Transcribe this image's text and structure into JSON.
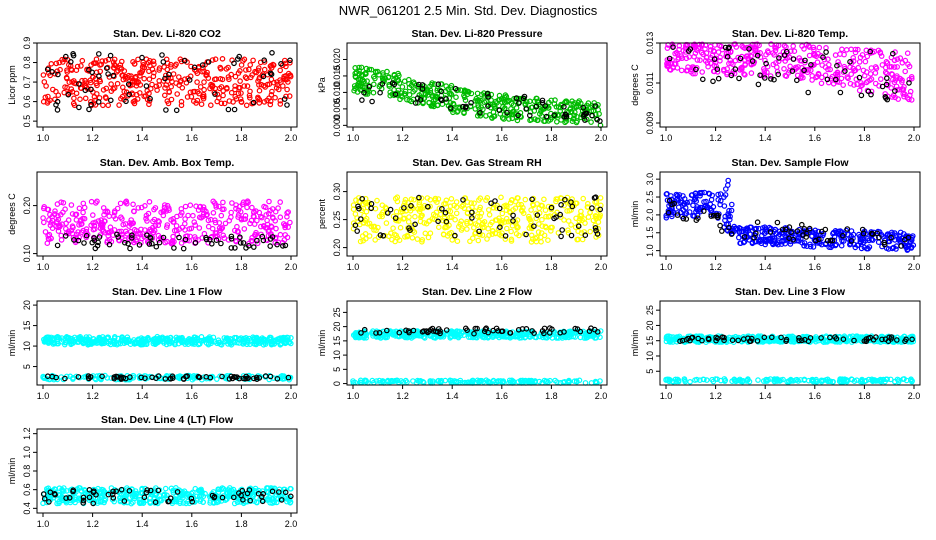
{
  "title": "NWR_061201  2.5 Min. Std. Dev. Diagnostics",
  "chart_data": [
    {
      "type": "scatter",
      "title": "Stan. Dev. Li-820 CO2",
      "ylabel": "Licor ppm",
      "xlim": [
        1.0,
        2.0
      ],
      "ylim": [
        0.47,
        0.9
      ],
      "xticks": [
        "1.0",
        "1.2",
        "1.4",
        "1.6",
        "1.8",
        "2.0"
      ],
      "yticks": [
        0.5,
        0.6,
        0.7,
        0.8,
        0.9
      ],
      "ytick_labels": [
        "0.5",
        "0.6",
        "0.7",
        "0.8",
        "0.9"
      ],
      "color": "#ff0000",
      "series": [
        {
          "name": "main",
          "color": "#ff0000",
          "band": [
            {
              "x": 1.0,
              "lo": 0.58,
              "hi": 0.82
            },
            {
              "x": 1.5,
              "lo": 0.58,
              "hi": 0.82
            },
            {
              "x": 2.0,
              "lo": 0.58,
              "hi": 0.82
            }
          ]
        },
        {
          "name": "black",
          "color": "#000000",
          "band": [
            {
              "x": 1.0,
              "lo": 0.55,
              "hi": 0.85
            },
            {
              "x": 2.0,
              "lo": 0.55,
              "hi": 0.85
            }
          ]
        }
      ]
    },
    {
      "type": "scatter",
      "title": "Stan. Dev. Li-820 Pressure",
      "ylabel": "kPa",
      "xlim": [
        1.0,
        2.0
      ],
      "ylim": [
        -0.0005,
        0.025
      ],
      "xticks": [
        "1.0",
        "1.2",
        "1.4",
        "1.6",
        "1.8",
        "2.0"
      ],
      "yticks": [
        0.0,
        0.005,
        0.01,
        0.015,
        0.02
      ],
      "ytick_labels": [
        "0.000",
        "0.005",
        "0.010",
        "0.015",
        "0.020"
      ],
      "color": "#00bb00",
      "series": [
        {
          "name": "main",
          "color": "#00bb00",
          "band": [
            {
              "x": 1.0,
              "lo": 0.01,
              "hi": 0.018
            },
            {
              "x": 1.25,
              "lo": 0.007,
              "hi": 0.015
            },
            {
              "x": 1.5,
              "lo": 0.002,
              "hi": 0.01
            },
            {
              "x": 1.8,
              "lo": 0.001,
              "hi": 0.008
            },
            {
              "x": 2.0,
              "lo": 0.0,
              "hi": 0.007
            }
          ]
        },
        {
          "name": "black",
          "color": "#000000",
          "band": [
            {
              "x": 1.0,
              "lo": 0.008,
              "hi": 0.018
            },
            {
              "x": 1.5,
              "lo": 0.003,
              "hi": 0.01
            },
            {
              "x": 2.0,
              "lo": 0.001,
              "hi": 0.007
            }
          ]
        }
      ]
    },
    {
      "type": "scatter",
      "title": "Stan. Dev. Li-820 Temp.",
      "ylabel": "degrees C",
      "xlim": [
        1.0,
        2.0
      ],
      "ylim": [
        0.0088,
        0.013
      ],
      "xticks": [
        "1.0",
        "1.2",
        "1.4",
        "1.6",
        "1.8",
        "2.0"
      ],
      "yticks": [
        0.009,
        0.011,
        0.013
      ],
      "ytick_labels": [
        "0.009",
        "0.011",
        "0.013"
      ],
      "color": "#ff00ff",
      "series": [
        {
          "name": "main",
          "color": "#ff00ff",
          "band": [
            {
              "x": 1.0,
              "lo": 0.0115,
              "hi": 0.013
            },
            {
              "x": 1.5,
              "lo": 0.0113,
              "hi": 0.013
            },
            {
              "x": 2.0,
              "lo": 0.01,
              "hi": 0.0125
            }
          ]
        },
        {
          "name": "black",
          "color": "#000000",
          "band": [
            {
              "x": 1.0,
              "lo": 0.0112,
              "hi": 0.013
            },
            {
              "x": 2.0,
              "lo": 0.01,
              "hi": 0.0125
            }
          ]
        }
      ]
    },
    {
      "type": "scatter",
      "title": "Stan. Dev. Amb. Box Temp.",
      "ylabel": "degrees C",
      "xlim": [
        1.0,
        2.0
      ],
      "ylim": [
        0.095,
        0.27
      ],
      "xticks": [
        "1.0",
        "1.2",
        "1.4",
        "1.6",
        "1.8",
        "2.0"
      ],
      "yticks": [
        0.1,
        0.2
      ],
      "ytick_labels": [
        "0.10",
        "0.20"
      ],
      "color": "#ff00ff",
      "series": [
        {
          "name": "main",
          "color": "#ff00ff",
          "band": [
            {
              "x": 1.0,
              "lo": 0.12,
              "hi": 0.21
            },
            {
              "x": 2.0,
              "lo": 0.12,
              "hi": 0.21
            }
          ]
        },
        {
          "name": "black",
          "color": "#000000",
          "band": [
            {
              "x": 1.0,
              "lo": 0.11,
              "hi": 0.14
            },
            {
              "x": 2.0,
              "lo": 0.11,
              "hi": 0.14
            }
          ]
        }
      ]
    },
    {
      "type": "scatter",
      "title": "Stan. Dev. Gas Stream RH",
      "ylabel": "percent",
      "xlim": [
        1.0,
        2.0
      ],
      "ylim": [
        0.185,
        0.335
      ],
      "xticks": [
        "1.0",
        "1.2",
        "1.4",
        "1.6",
        "1.8",
        "2.0"
      ],
      "yticks": [
        0.2,
        0.25,
        0.3
      ],
      "ytick_labels": [
        "0.20",
        "0.25",
        "0.30"
      ],
      "color": "#ffff00",
      "series": [
        {
          "name": "main",
          "color": "#ffff00",
          "band": [
            {
              "x": 1.0,
              "lo": 0.21,
              "hi": 0.29
            },
            {
              "x": 2.0,
              "lo": 0.21,
              "hi": 0.29
            }
          ]
        },
        {
          "name": "black",
          "color": "#000000",
          "band": [
            {
              "x": 1.0,
              "lo": 0.22,
              "hi": 0.29
            },
            {
              "x": 2.0,
              "lo": 0.22,
              "hi": 0.29
            }
          ]
        }
      ]
    },
    {
      "type": "scatter",
      "title": "Stan. Dev. Sample Flow",
      "ylabel": "ml/min",
      "xlim": [
        1.0,
        2.0
      ],
      "ylim": [
        0.85,
        3.2
      ],
      "xticks": [
        "1.0",
        "1.2",
        "1.4",
        "1.6",
        "1.8",
        "2.0"
      ],
      "yticks": [
        1.0,
        1.5,
        2.0,
        2.5,
        3.0
      ],
      "ytick_labels": [
        "1.0",
        "1.5",
        "2.0",
        "2.5",
        "3.0"
      ],
      "color": "#0000ff",
      "series": [
        {
          "name": "main",
          "color": "#0000ff",
          "band": [
            {
              "x": 1.0,
              "lo": 1.9,
              "hi": 2.6
            },
            {
              "x": 1.2,
              "lo": 2.0,
              "hi": 2.7
            },
            {
              "x": 1.25,
              "lo": 1.5,
              "hi": 3.0
            },
            {
              "x": 1.28,
              "lo": 1.2,
              "hi": 1.7
            },
            {
              "x": 1.6,
              "lo": 1.1,
              "hi": 1.6
            },
            {
              "x": 2.0,
              "lo": 1.0,
              "hi": 1.5
            }
          ]
        },
        {
          "name": "black",
          "color": "#000000",
          "band": [
            {
              "x": 1.0,
              "lo": 2.0,
              "hi": 2.5
            },
            {
              "x": 1.25,
              "lo": 1.4,
              "hi": 1.9
            },
            {
              "x": 2.0,
              "lo": 1.1,
              "hi": 1.5
            }
          ]
        }
      ]
    },
    {
      "type": "scatter",
      "title": "Stan. Dev. Line 1 Flow",
      "ylabel": "ml/min",
      "xlim": [
        1.0,
        2.0
      ],
      "ylim": [
        0.5,
        21
      ],
      "xticks": [
        "1.0",
        "1.2",
        "1.4",
        "1.6",
        "1.8",
        "2.0"
      ],
      "yticks": [
        5,
        10,
        15,
        20
      ],
      "ytick_labels": [
        "5",
        "10",
        "15",
        "20"
      ],
      "color": "#00ffff",
      "series": [
        {
          "name": "main",
          "color": "#00ffff",
          "band": [
            {
              "x": 1.0,
              "lo": 10.3,
              "hi": 12.3
            },
            {
              "x": 2.0,
              "lo": 10.3,
              "hi": 12.3
            }
          ]
        },
        {
          "name": "low",
          "color": "#00ffff",
          "band": [
            {
              "x": 1.0,
              "lo": 1.8,
              "hi": 2.8
            },
            {
              "x": 2.0,
              "lo": 1.8,
              "hi": 2.8
            }
          ]
        },
        {
          "name": "black",
          "color": "#000000",
          "band": [
            {
              "x": 1.0,
              "lo": 1.9,
              "hi": 2.7
            },
            {
              "x": 2.0,
              "lo": 1.9,
              "hi": 2.7
            }
          ]
        }
      ]
    },
    {
      "type": "scatter",
      "title": "Stan. Dev. Line 2 Flow",
      "ylabel": "ml/min",
      "xlim": [
        1.0,
        2.0
      ],
      "ylim": [
        -0.5,
        29
      ],
      "xticks": [
        "1.0",
        "1.2",
        "1.4",
        "1.6",
        "1.8",
        "2.0"
      ],
      "yticks": [
        0,
        5,
        10,
        15,
        20,
        25
      ],
      "ytick_labels": [
        "0",
        "5",
        "10",
        "15",
        "20",
        "25"
      ],
      "color": "#00ffff",
      "series": [
        {
          "name": "main",
          "color": "#00ffff",
          "band": [
            {
              "x": 1.0,
              "lo": 16,
              "hi": 18.5
            },
            {
              "x": 2.0,
              "lo": 16,
              "hi": 18.5
            }
          ]
        },
        {
          "name": "low",
          "color": "#00ffff",
          "band": [
            {
              "x": 1.0,
              "lo": 0.2,
              "hi": 1.2
            },
            {
              "x": 2.0,
              "lo": 0.2,
              "hi": 1.2
            }
          ]
        },
        {
          "name": "black",
          "color": "#000000",
          "band": [
            {
              "x": 1.0,
              "lo": 17.5,
              "hi": 19.5
            },
            {
              "x": 2.0,
              "lo": 17.5,
              "hi": 19.5
            }
          ]
        }
      ]
    },
    {
      "type": "scatter",
      "title": "Stan. Dev. Line 3 Flow",
      "ylabel": "ml/min",
      "xlim": [
        1.0,
        2.0
      ],
      "ylim": [
        0.5,
        28
      ],
      "xticks": [
        "1.0",
        "1.2",
        "1.4",
        "1.6",
        "1.8",
        "2.0"
      ],
      "yticks": [
        5,
        10,
        15,
        20,
        25
      ],
      "ytick_labels": [
        "5",
        "10",
        "15",
        "20",
        "25"
      ],
      "color": "#00ffff",
      "series": [
        {
          "name": "main",
          "color": "#00ffff",
          "band": [
            {
              "x": 1.0,
              "lo": 14.5,
              "hi": 16.5
            },
            {
              "x": 2.0,
              "lo": 14.5,
              "hi": 16.5
            }
          ]
        },
        {
          "name": "low",
          "color": "#00ffff",
          "band": [
            {
              "x": 1.0,
              "lo": 1.5,
              "hi": 2.5
            },
            {
              "x": 2.0,
              "lo": 1.5,
              "hi": 2.5
            }
          ]
        },
        {
          "name": "black",
          "color": "#000000",
          "band": [
            {
              "x": 1.0,
              "lo": 14.8,
              "hi": 16.2
            },
            {
              "x": 2.0,
              "lo": 14.8,
              "hi": 16.2
            }
          ]
        }
      ]
    },
    {
      "type": "scatter",
      "title": "Stan. Dev. Line 4 (LT) Flow",
      "ylabel": "ml/min",
      "xlim": [
        1.0,
        2.0
      ],
      "ylim": [
        0.35,
        1.25
      ],
      "xticks": [
        "1.0",
        "1.2",
        "1.4",
        "1.6",
        "1.8",
        "2.0"
      ],
      "yticks": [
        0.4,
        0.6,
        0.8,
        1.0,
        1.2
      ],
      "ytick_labels": [
        "0.4",
        "0.6",
        "0.8",
        "1.0",
        "1.2"
      ],
      "color": "#00ffff",
      "series": [
        {
          "name": "main",
          "color": "#00ffff",
          "band": [
            {
              "x": 1.0,
              "lo": 0.45,
              "hi": 0.62
            },
            {
              "x": 2.0,
              "lo": 0.45,
              "hi": 0.62
            }
          ]
        },
        {
          "name": "black",
          "color": "#000000",
          "band": [
            {
              "x": 1.0,
              "lo": 0.45,
              "hi": 0.6
            },
            {
              "x": 2.0,
              "lo": 0.45,
              "hi": 0.6
            }
          ]
        }
      ]
    }
  ]
}
